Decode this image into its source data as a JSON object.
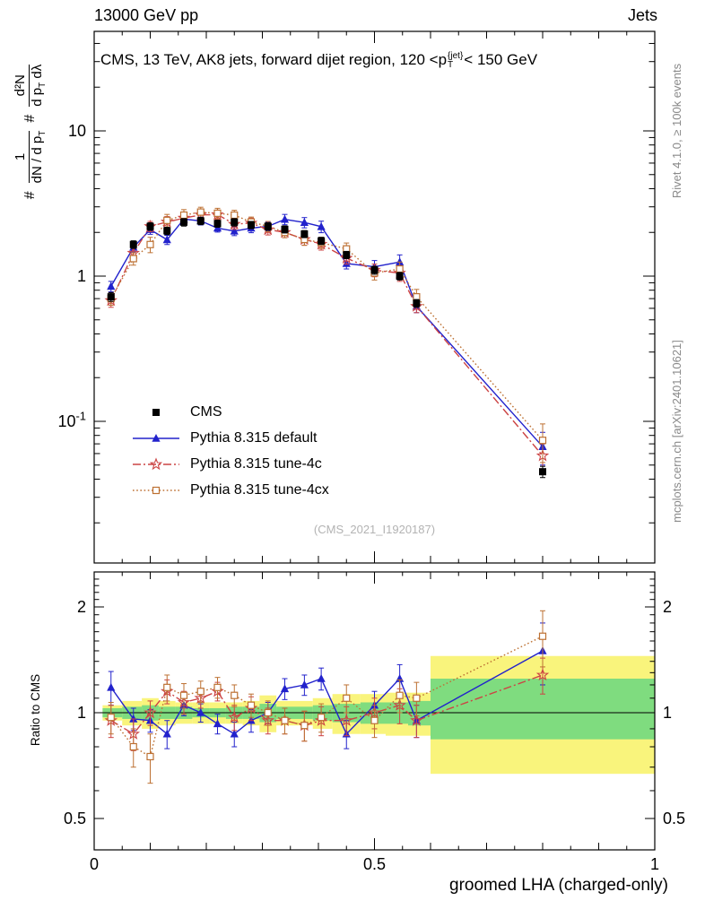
{
  "header": {
    "left": "13000 GeV pp",
    "right": "Jets"
  },
  "title": {
    "pre": "CMS, 13 TeV, AK8 jets, forward dijet region, 120 <p",
    "sup": "{jet}",
    "sub": "T",
    "post": "< 150 GeV"
  },
  "ylabel": {
    "hash": "#",
    "frac1": {
      "num": "1",
      "den_base": "dN / d p",
      "den_sub": "T"
    },
    "frac2": {
      "num": "d²N",
      "den_base": "d p",
      "den_sub": "T",
      "den_tail": " dλ"
    }
  },
  "ratio_ylabel": "Ratio to CMS",
  "xlabel": "groomed LHA (charged-only)",
  "watermark": "(CMS_2021_I1920187)",
  "side_notes": {
    "top": "Rivet 4.1.0, ≥ 100k events",
    "bottom": "mcplots.cern.ch [arXiv:2401.10621]"
  },
  "chart_data": {
    "type": "line",
    "xlabel": "groomed LHA (charged-only)",
    "x_range": [
      0,
      1
    ],
    "x_ticks": {
      "major": [
        {
          "v": 0,
          "label": "0"
        },
        {
          "v": 0.5,
          "label": "0.5"
        },
        {
          "v": 1,
          "label": "1"
        }
      ]
    },
    "main_axis": {
      "scale": "log",
      "range": [
        0.011,
        47
      ],
      "ticks": [
        {
          "v": 10,
          "label": "10"
        },
        {
          "v": 1,
          "label": "1"
        },
        {
          "v": 0.1,
          "label": "10^{-1}"
        }
      ]
    },
    "ratio_axis": {
      "scale": "log",
      "range": [
        0.41,
        2.5
      ],
      "ticks": [
        {
          "v": 2,
          "label": "2"
        },
        {
          "v": 1,
          "label": "1"
        },
        {
          "v": 0.5,
          "label": "0.5"
        }
      ]
    },
    "x": [
      0.03,
      0.07,
      0.1,
      0.13,
      0.16,
      0.19,
      0.22,
      0.25,
      0.28,
      0.31,
      0.34,
      0.375,
      0.405,
      0.45,
      0.5,
      0.545,
      0.575,
      0.8
    ],
    "series": [
      {
        "id": "cms",
        "label": "CMS",
        "marker": "square-filled",
        "line": "none",
        "color": "#000000",
        "values": [
          0.72,
          1.65,
          2.2,
          2.05,
          2.35,
          2.4,
          2.3,
          2.35,
          2.25,
          2.2,
          2.1,
          1.95,
          1.75,
          1.4,
          1.1,
          1.0,
          0.65,
          0.045
        ],
        "errs": [
          0.05,
          0.1,
          0.13,
          0.12,
          0.14,
          0.14,
          0.13,
          0.14,
          0.13,
          0.13,
          0.12,
          0.11,
          0.1,
          0.08,
          0.07,
          0.06,
          0.04,
          0.004
        ]
      },
      {
        "id": "pythia-default",
        "label": "Pythia 8.315 default",
        "marker": "triangle-filled",
        "line": "solid",
        "color": "#2222cc",
        "values": [
          0.85,
          1.58,
          2.09,
          1.78,
          2.47,
          2.4,
          2.14,
          2.04,
          2.14,
          2.2,
          2.46,
          2.34,
          2.19,
          1.22,
          1.16,
          1.25,
          0.62,
          0.067
        ],
        "errs": [
          0.07,
          0.11,
          0.15,
          0.13,
          0.17,
          0.15,
          0.13,
          0.14,
          0.15,
          0.15,
          0.2,
          0.19,
          0.2,
          0.1,
          0.12,
          0.15,
          0.06,
          0.017
        ],
        "ratio": [
          1.18,
          0.96,
          0.95,
          0.87,
          1.05,
          1.0,
          0.93,
          0.87,
          0.95,
          1.0,
          1.17,
          1.2,
          1.25,
          0.87,
          1.05,
          1.25,
          0.95,
          1.5
        ],
        "ratio_errs": [
          0.13,
          0.07,
          0.07,
          0.08,
          0.07,
          0.06,
          0.06,
          0.07,
          0.07,
          0.07,
          0.08,
          0.08,
          0.09,
          0.08,
          0.1,
          0.12,
          0.1,
          0.3
        ]
      },
      {
        "id": "pythia-tune4c",
        "label": "Pythia 8.315 tune-4c",
        "marker": "star-open",
        "line": "dashdot",
        "color": "#cc4444",
        "values": [
          0.68,
          1.44,
          2.2,
          2.36,
          2.51,
          2.64,
          2.65,
          2.28,
          2.32,
          2.09,
          2.0,
          1.79,
          1.66,
          1.33,
          1.1,
          1.05,
          0.62,
          0.058
        ],
        "errs": [
          0.07,
          0.13,
          0.18,
          0.21,
          0.2,
          0.18,
          0.19,
          0.18,
          0.19,
          0.17,
          0.16,
          0.16,
          0.15,
          0.12,
          0.11,
          0.13,
          0.06,
          0.012
        ],
        "ratio": [
          0.95,
          0.87,
          1.0,
          1.15,
          1.07,
          1.1,
          1.15,
          0.97,
          1.03,
          0.95,
          0.95,
          0.92,
          0.95,
          0.95,
          1.0,
          1.05,
          0.95,
          1.28
        ],
        "ratio_errs": [
          0.1,
          0.09,
          0.08,
          0.09,
          0.08,
          0.07,
          0.07,
          0.08,
          0.08,
          0.08,
          0.08,
          0.09,
          0.09,
          0.09,
          0.1,
          0.12,
          0.1,
          0.15
        ]
      },
      {
        "id": "pythia-tune4cx",
        "label": "Pythia 8.315 tune-4cx",
        "marker": "square-open",
        "line": "dotted",
        "color": "#bd7133",
        "values": [
          0.7,
          1.32,
          1.65,
          2.42,
          2.63,
          2.76,
          2.71,
          2.63,
          2.36,
          2.2,
          2.0,
          1.79,
          1.7,
          1.54,
          1.05,
          1.12,
          0.72,
          0.074
        ],
        "errs": [
          0.07,
          0.13,
          0.2,
          0.24,
          0.24,
          0.22,
          0.22,
          0.21,
          0.19,
          0.18,
          0.16,
          0.16,
          0.15,
          0.15,
          0.11,
          0.13,
          0.09,
          0.022
        ],
        "ratio": [
          0.97,
          0.8,
          0.75,
          1.18,
          1.12,
          1.15,
          1.18,
          1.12,
          1.05,
          1.0,
          0.95,
          0.92,
          0.97,
          1.1,
          0.95,
          1.12,
          1.1,
          1.65
        ],
        "ratio_errs": [
          0.1,
          0.1,
          0.12,
          0.1,
          0.09,
          0.08,
          0.08,
          0.08,
          0.08,
          0.08,
          0.08,
          0.09,
          0.09,
          0.1,
          0.1,
          0.12,
          0.12,
          0.3
        ]
      }
    ],
    "ratio_bands": {
      "yellow_color": "#f9f47c",
      "green_color": "#7fdc7f",
      "edges": [
        0.015,
        0.05,
        0.085,
        0.115,
        0.145,
        0.175,
        0.205,
        0.235,
        0.265,
        0.295,
        0.325,
        0.36,
        0.39,
        0.425,
        0.475,
        0.52,
        0.56,
        0.6,
        1.0
      ],
      "yellow": [
        [
          0.95,
          1.05
        ],
        [
          0.92,
          1.08
        ],
        [
          0.9,
          1.1
        ],
        [
          0.92,
          1.08
        ],
        [
          0.93,
          1.07
        ],
        [
          0.93,
          1.07
        ],
        [
          0.93,
          1.07
        ],
        [
          0.93,
          1.07
        ],
        [
          0.92,
          1.08
        ],
        [
          0.88,
          1.12
        ],
        [
          0.92,
          1.08
        ],
        [
          0.92,
          1.08
        ],
        [
          0.9,
          1.1
        ],
        [
          0.87,
          1.13
        ],
        [
          0.87,
          1.13
        ],
        [
          0.86,
          1.14
        ],
        [
          0.86,
          1.14
        ],
        [
          0.67,
          1.45
        ]
      ],
      "green": [
        [
          0.97,
          1.03
        ],
        [
          0.96,
          1.04
        ],
        [
          0.95,
          1.05
        ],
        [
          0.96,
          1.04
        ],
        [
          0.96,
          1.04
        ],
        [
          0.97,
          1.03
        ],
        [
          0.97,
          1.03
        ],
        [
          0.96,
          1.04
        ],
        [
          0.96,
          1.04
        ],
        [
          0.94,
          1.06
        ],
        [
          0.96,
          1.04
        ],
        [
          0.96,
          1.04
        ],
        [
          0.95,
          1.05
        ],
        [
          0.94,
          1.06
        ],
        [
          0.93,
          1.07
        ],
        [
          0.93,
          1.07
        ],
        [
          0.92,
          1.08
        ],
        [
          0.84,
          1.25
        ]
      ]
    }
  }
}
